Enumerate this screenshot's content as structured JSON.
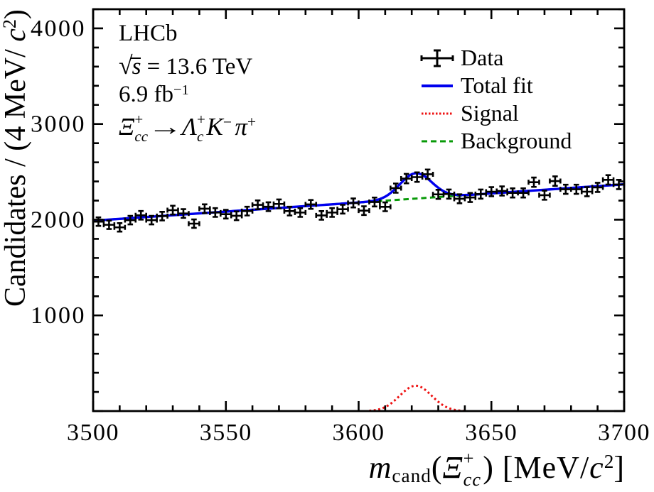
{
  "annotations": {
    "experiment": "LHCb",
    "energy": {
      "sqrt": "√",
      "s": "s",
      "rest": " = 13.6 TeV"
    },
    "luminosity": {
      "base": "6.9 fb",
      "sup": "−1"
    },
    "decay": {
      "xi": "Ξ",
      "xi_sup": "+",
      "xi_sub": "cc",
      "arrow": "→",
      "lambda": "Λ",
      "lambda_sup": "+",
      "lambda_sub": "c",
      "k": "K",
      "k_sup": "−",
      "pi": "π",
      "pi_sup": "+"
    }
  },
  "legend": {
    "entries": [
      {
        "label": "Data",
        "marker": "cross",
        "color": "#000000"
      },
      {
        "label": "Total fit",
        "marker": "solid-line",
        "color": "#0000ee"
      },
      {
        "label": "Signal",
        "marker": "dotted-line",
        "color": "#ee1111"
      },
      {
        "label": "Background",
        "marker": "dashed-line",
        "color": "#089a08"
      }
    ]
  },
  "x_axis_title": {
    "var": "m",
    "sub": "cand",
    "open": "(",
    "xi": "Ξ",
    "xi_sup": "+",
    "xi_sub": "cc",
    "close": ")",
    "rest": " [MeV/",
    "c": "c",
    "sup": "2",
    "bracket": "]"
  },
  "y_axis_title": {
    "main": "Candidates / (4 MeV/ ",
    "c": "c",
    "sup": "2",
    "close": ")"
  },
  "chart_data": {
    "type": "histogram_with_fit",
    "x_range": [
      3500,
      3700
    ],
    "y_range": [
      0,
      4200
    ],
    "x_major_tick_step": 50,
    "x_minor_tick_step": 10,
    "y_major_tick_step": 1000,
    "y_minor_tick_step": 200,
    "x_tick_labels": [
      {
        "value": 3500,
        "label": "3500"
      },
      {
        "value": 3550,
        "label": "3550"
      },
      {
        "value": 3600,
        "label": "3600"
      },
      {
        "value": 3650,
        "label": "3650"
      },
      {
        "value": 3700,
        "label": "3700"
      }
    ],
    "y_tick_labels": [
      {
        "value": 1000,
        "label": "1000"
      },
      {
        "value": 2000,
        "label": "2000"
      },
      {
        "value": 3000,
        "label": "3000"
      },
      {
        "value": 4000,
        "label": "4000"
      }
    ],
    "bin_width_mev": 4,
    "data_points": {
      "mass_mev": [
        3502,
        3506,
        3510,
        3514,
        3518,
        3522,
        3526,
        3530,
        3534,
        3538,
        3542,
        3546,
        3550,
        3554,
        3558,
        3562,
        3566,
        3570,
        3574,
        3578,
        3582,
        3586,
        3590,
        3594,
        3598,
        3602,
        3606,
        3610,
        3614,
        3618,
        3622,
        3626,
        3630,
        3634,
        3638,
        3642,
        3646,
        3650,
        3654,
        3658,
        3662,
        3666,
        3670,
        3674,
        3678,
        3682,
        3686,
        3690,
        3694,
        3698
      ],
      "candidates": [
        1980,
        1947,
        1920,
        1996,
        2046,
        1996,
        2038,
        2100,
        2065,
        1959,
        2115,
        2075,
        2058,
        2041,
        2090,
        2155,
        2136,
        2165,
        2090,
        2075,
        2160,
        2045,
        2075,
        2110,
        2175,
        2095,
        2185,
        2135,
        2330,
        2430,
        2445,
        2475,
        2265,
        2268,
        2219,
        2232,
        2268,
        2293,
        2300,
        2280,
        2280,
        2392,
        2256,
        2404,
        2318,
        2318,
        2293,
        2338,
        2417,
        2368
      ],
      "y_error": "poisson_sqrt",
      "x_error_mev": 2
    },
    "background_fit": {
      "shape": "linear",
      "x": [
        3500,
        3700
      ],
      "y": [
        1990,
        2370
      ],
      "color": "#089a08",
      "line_style": "dashed"
    },
    "signal_fit": {
      "shape": "gaussian",
      "mean_mev": 3621.5,
      "sigma_mev": 6.0,
      "amplitude": 265,
      "color": "#ee1111",
      "line_style": "dotted"
    },
    "total_fit": {
      "composition": "background_plus_signal",
      "color": "#0000ee",
      "line_style": "solid"
    }
  }
}
